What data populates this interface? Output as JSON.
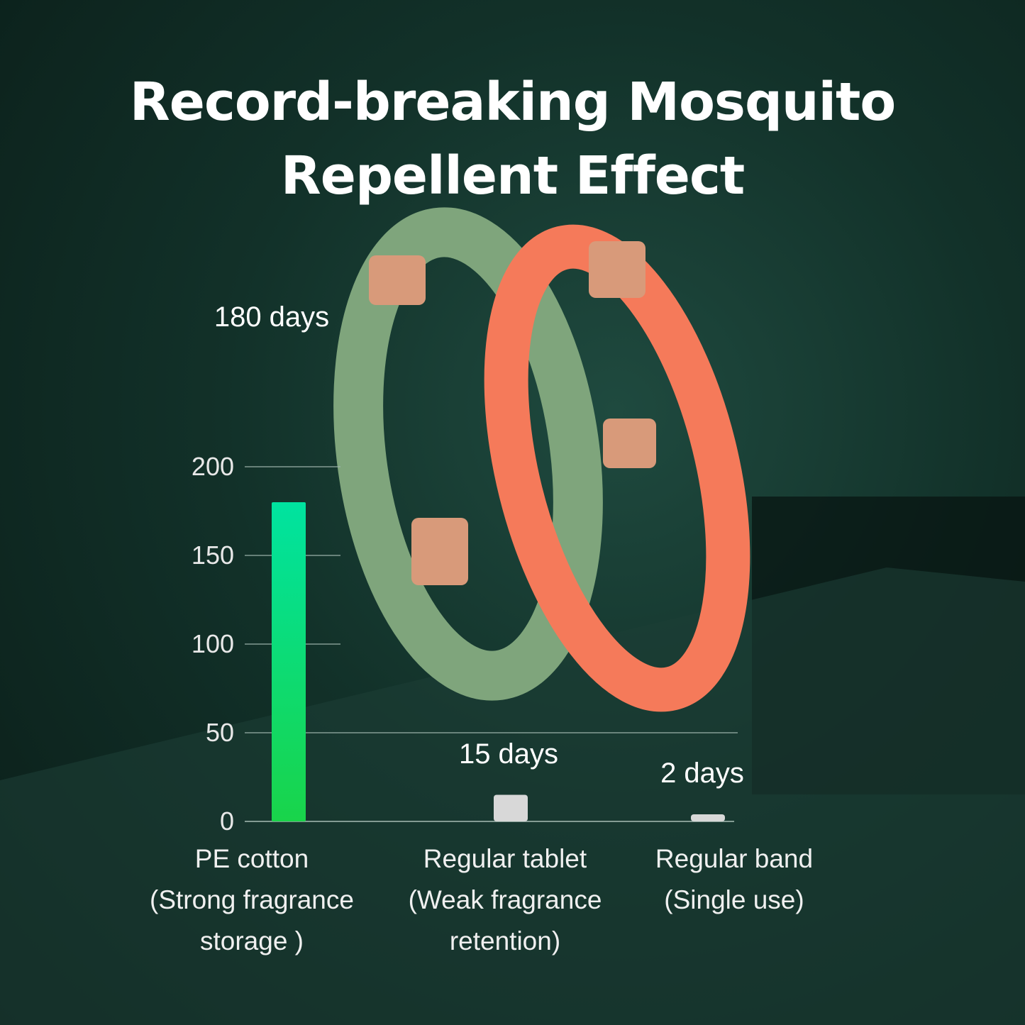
{
  "title_line1": "Record-breaking Mosquito",
  "title_line2": "Repellent Effect",
  "chart_data": {
    "type": "bar",
    "categories": [
      [
        "PE cotton",
        "(Strong fragrance",
        "storage )"
      ],
      [
        "Regular tablet",
        "(Weak fragrance",
        "retention)"
      ],
      [
        "Regular band",
        "(Single use)"
      ]
    ],
    "values": [
      180,
      15,
      2
    ],
    "data_labels": [
      "180 days",
      "15 days",
      "2 days"
    ],
    "yticks": [
      0,
      50,
      100,
      150,
      200
    ],
    "ylim": [
      0,
      250
    ],
    "colors": {
      "bar_primary_top": "#00e3a0",
      "bar_primary_bottom": "#19d44a",
      "bar_other": "#d8d8d8"
    }
  }
}
